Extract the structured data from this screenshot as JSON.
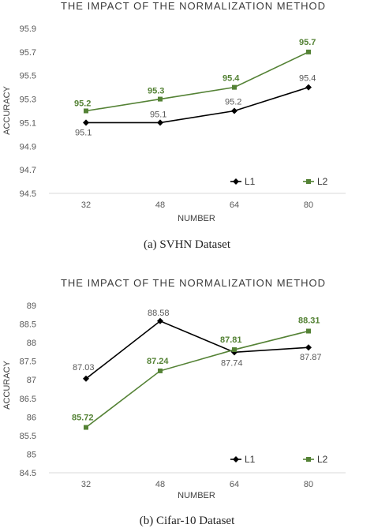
{
  "chart_data": [
    {
      "type": "line",
      "title": "THE IMPACT OF THE NORMALIZATION METHOD",
      "xlabel": "NUMBER",
      "ylabel": "ACCURACY",
      "categories": [
        "32",
        "48",
        "64",
        "80"
      ],
      "yticks": [
        "94.5",
        "94.7",
        "94.9",
        "95.1",
        "95.3",
        "95.5",
        "95.7",
        "95.9"
      ],
      "ylim": [
        94.5,
        95.9
      ],
      "grid": false,
      "legend_position": "bottom-right",
      "caption": "(a)  SVHN Dataset",
      "series": [
        {
          "name": "L1",
          "values": [
            95.1,
            95.1,
            95.2,
            95.4
          ],
          "labels": [
            "95.1",
            "95.1",
            "95.2",
            "95.4"
          ],
          "color": "#000000",
          "marker": "diamond",
          "label_color": "#595959"
        },
        {
          "name": "L2",
          "values": [
            95.2,
            95.3,
            95.4,
            95.7
          ],
          "labels": [
            "95.2",
            "95.3",
            "95.4",
            "95.7"
          ],
          "color": "#548235",
          "marker": "square",
          "label_color": "#548235"
        }
      ]
    },
    {
      "type": "line",
      "title": "THE IMPACT OF THE NORMALIZATION METHOD",
      "xlabel": "NUMBER",
      "ylabel": "ACCURACY",
      "categories": [
        "32",
        "48",
        "64",
        "80"
      ],
      "yticks": [
        "84.5",
        "85",
        "85.5",
        "86",
        "86.5",
        "87",
        "87.5",
        "88",
        "88.5",
        "89"
      ],
      "ylim": [
        84.5,
        89
      ],
      "grid": false,
      "legend_position": "bottom-right",
      "caption": "(b)  Cifar-10 Dataset",
      "series": [
        {
          "name": "L1",
          "values": [
            87.03,
            88.58,
            87.74,
            87.87
          ],
          "labels": [
            "87.03",
            "88.58",
            "87.74",
            "87.87"
          ],
          "color": "#000000",
          "marker": "diamond",
          "label_color": "#595959"
        },
        {
          "name": "L2",
          "values": [
            85.72,
            87.24,
            87.81,
            88.31
          ],
          "labels": [
            "85.72",
            "87.24",
            "87.81",
            "88.31"
          ],
          "color": "#548235",
          "marker": "square",
          "label_color": "#548235"
        }
      ]
    }
  ]
}
